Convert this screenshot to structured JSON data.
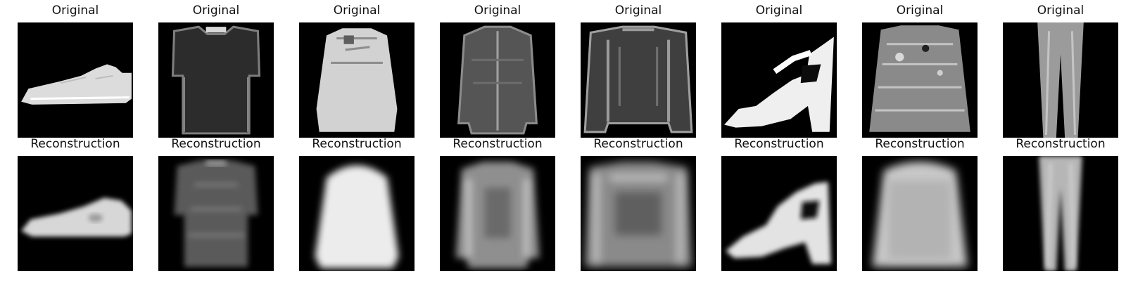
{
  "figure": {
    "columns": [
      {
        "item": "sneaker",
        "original_label": "Original",
        "reconstruction_label": "Reconstruction"
      },
      {
        "item": "t-shirt",
        "original_label": "Original",
        "reconstruction_label": "Reconstruction"
      },
      {
        "item": "pullover",
        "original_label": "Original",
        "reconstruction_label": "Reconstruction"
      },
      {
        "item": "shirt",
        "original_label": "Original",
        "reconstruction_label": "Reconstruction"
      },
      {
        "item": "coat",
        "original_label": "Original",
        "reconstruction_label": "Reconstruction"
      },
      {
        "item": "sandal",
        "original_label": "Original",
        "reconstruction_label": "Reconstruction"
      },
      {
        "item": "pullover",
        "original_label": "Original",
        "reconstruction_label": "Reconstruction"
      },
      {
        "item": "trouser",
        "original_label": "Original",
        "reconstruction_label": "Reconstruction"
      }
    ]
  },
  "colors": {
    "background": "#ffffff",
    "image_background": "#000000",
    "title_text": "#111111"
  }
}
